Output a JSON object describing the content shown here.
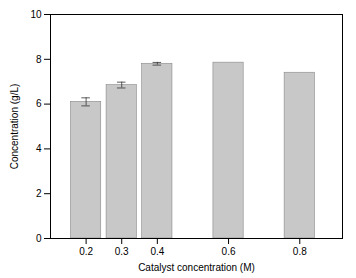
{
  "chart_data": {
    "type": "bar",
    "x": [
      0.2,
      0.3,
      0.4,
      0.6,
      0.8
    ],
    "values": [
      6.1,
      6.85,
      7.8,
      7.85,
      7.4
    ],
    "errors": [
      0.18,
      0.13,
      0.06,
      0.0,
      0.0
    ],
    "color": "#c8c8c8",
    "xlabel": "Catalyst concentration (M)",
    "ylabel": "Concentration (g/L)",
    "xlim": [
      0.1,
      0.92
    ],
    "xticks": [
      0.2,
      0.3,
      0.4,
      0.6,
      0.8
    ],
    "ylim": [
      0,
      10
    ],
    "yticks": [
      0,
      2,
      4,
      6,
      8,
      10
    ]
  }
}
